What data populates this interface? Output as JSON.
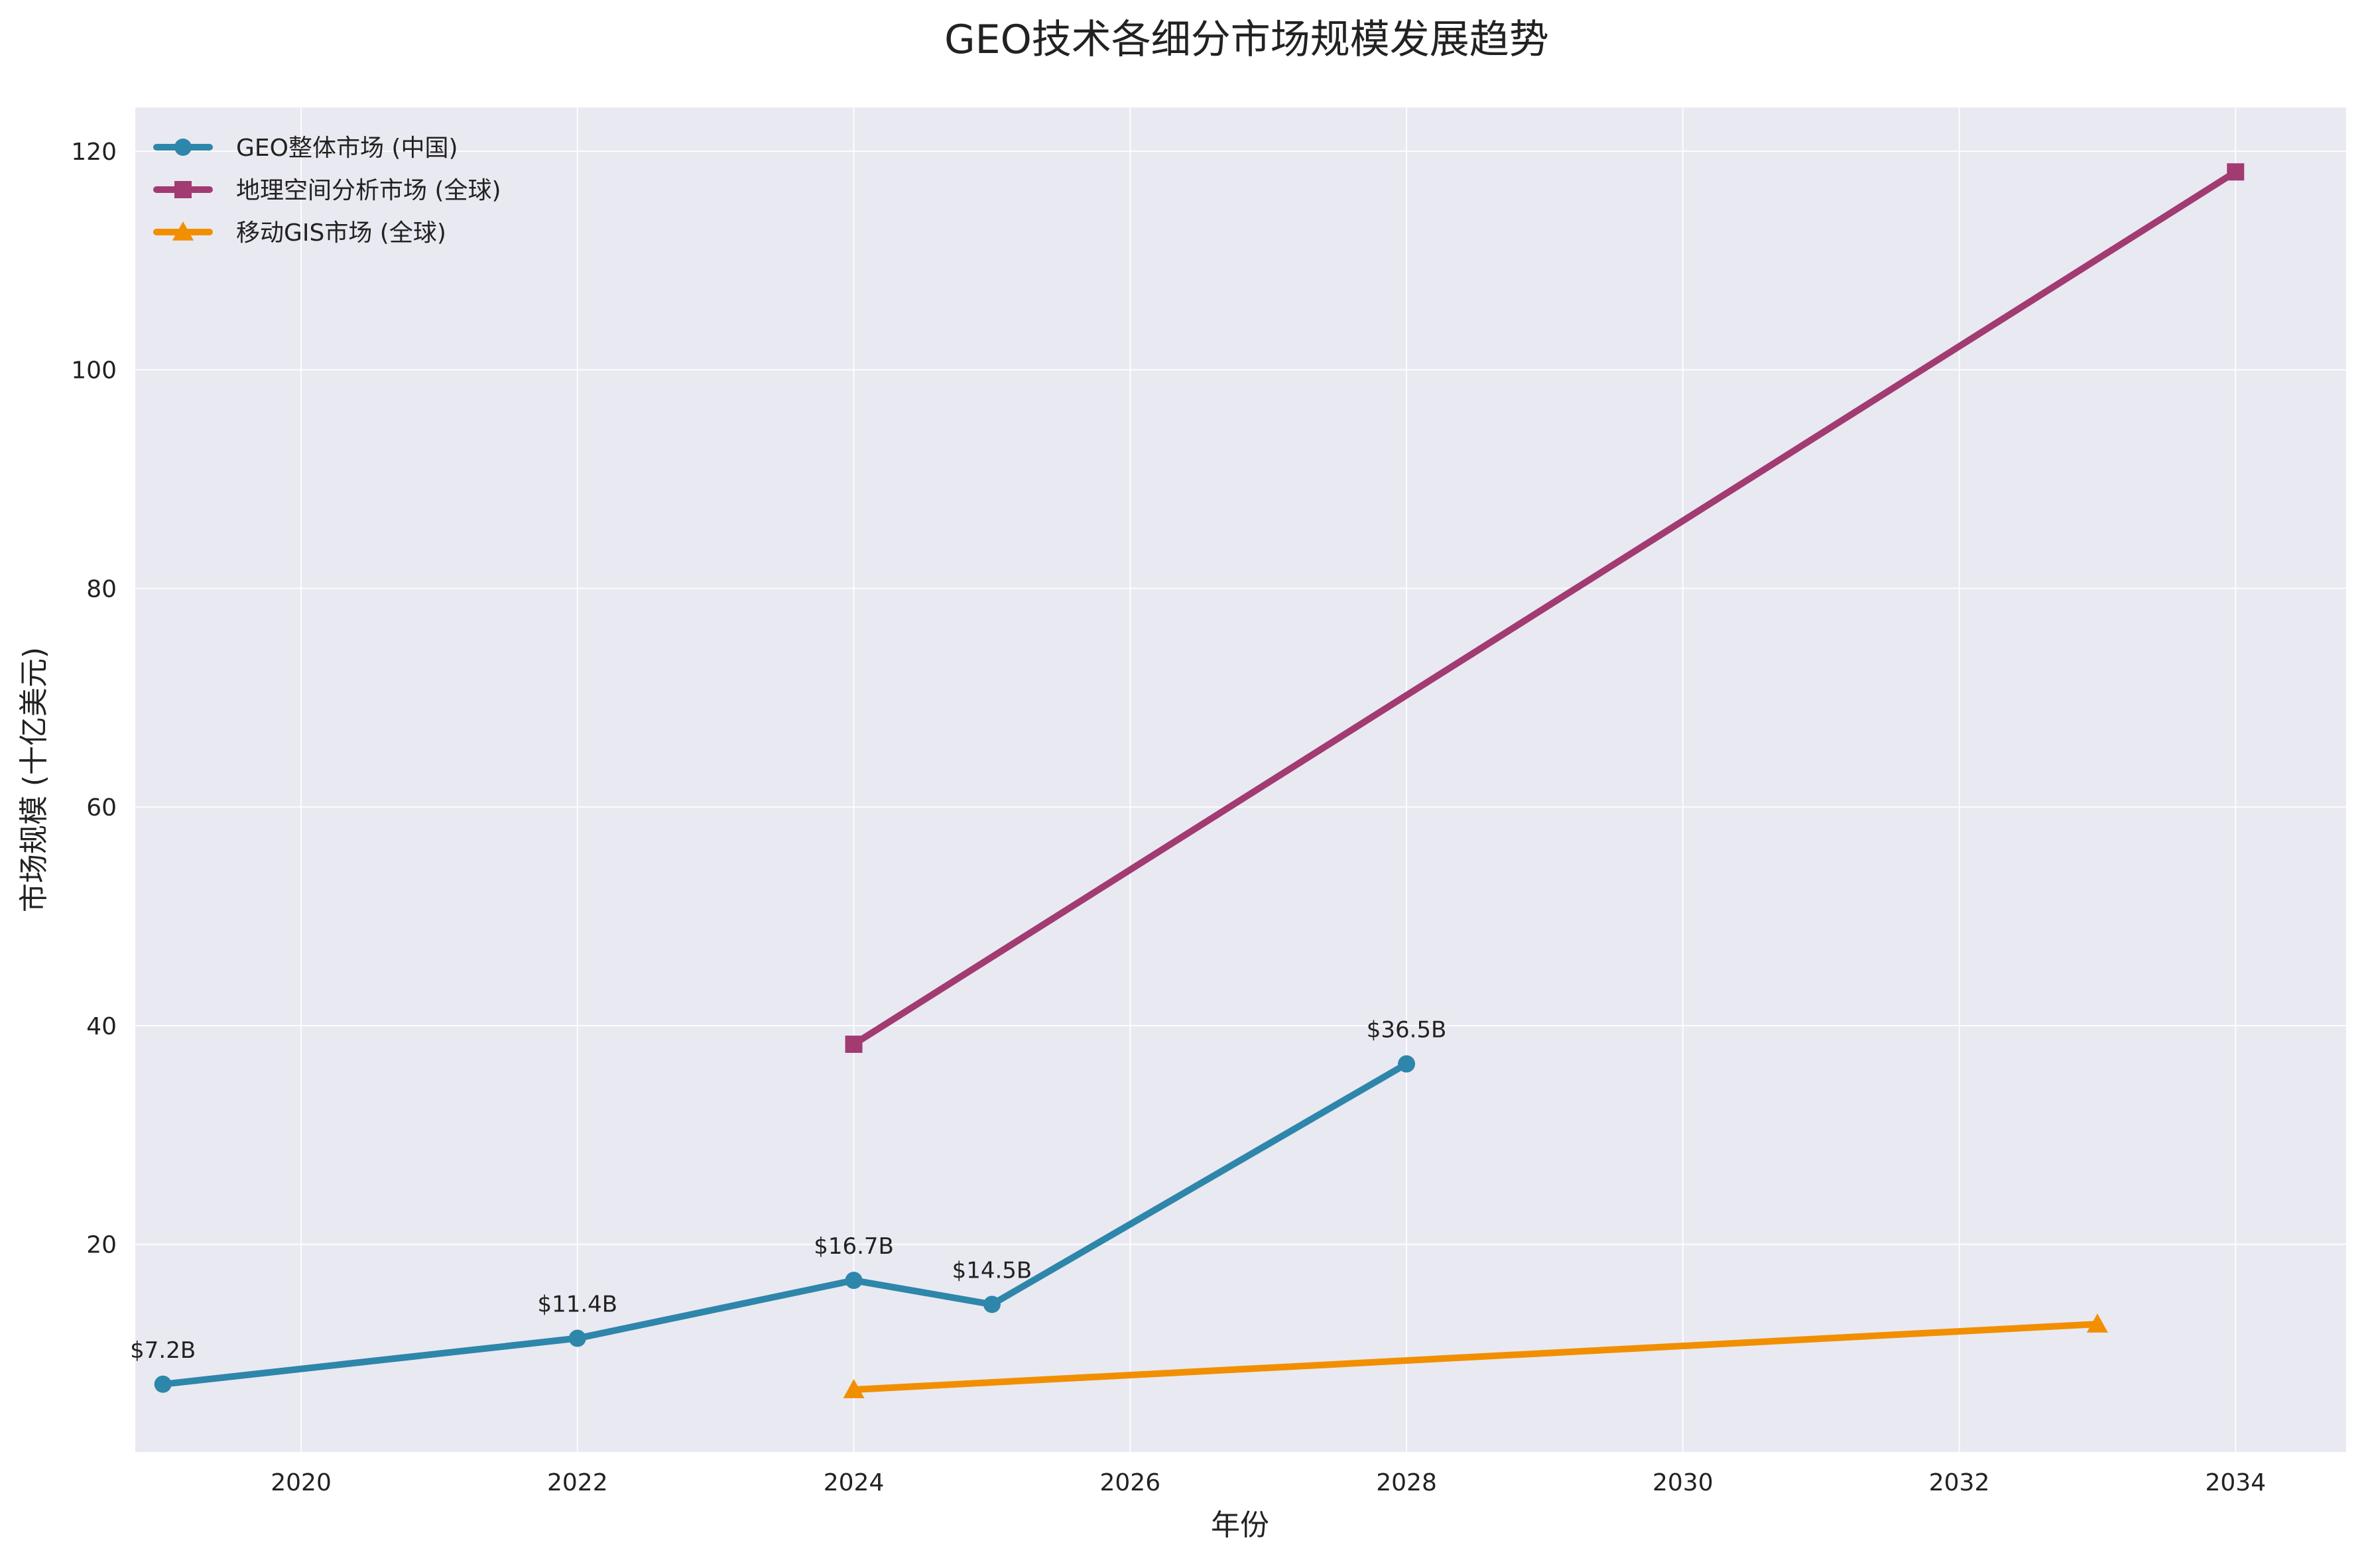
{
  "chart_data": {
    "type": "line",
    "title": "GEO技术各细分市场规模发展趋势",
    "xlabel": "年份",
    "ylabel": "市场规模 (十亿美元)",
    "xlim": [
      2018.8,
      2034.8
    ],
    "ylim": [
      1,
      124
    ],
    "x_ticks": [
      "2020",
      "2022",
      "2024",
      "2026",
      "2028",
      "2030",
      "2032",
      "2034"
    ],
    "y_ticks": [
      "20",
      "40",
      "60",
      "80",
      "100",
      "120"
    ],
    "grid": true,
    "legend_position": "top-left",
    "background_color": "#e9e9f1",
    "series": [
      {
        "name": "GEO整体市场 (中国)",
        "color": "#2e86ab",
        "marker": "circle",
        "x": [
          2019,
          2022,
          2024,
          2025,
          2028
        ],
        "y": [
          7.2,
          11.4,
          16.7,
          14.5,
          36.5
        ],
        "labels": [
          "$7.2B",
          "$11.4B",
          "$16.7B",
          "$14.5B",
          "$36.5B"
        ]
      },
      {
        "name": "地理空间分析市场 (全球)",
        "color": "#a23b72",
        "marker": "square",
        "x": [
          2024,
          2034
        ],
        "y": [
          38.3,
          118.1
        ],
        "labels": []
      },
      {
        "name": "移动GIS市场 (全球)",
        "color": "#f18f01",
        "marker": "triangle",
        "x": [
          2024,
          2033
        ],
        "y": [
          6.7,
          12.7
        ],
        "labels": []
      }
    ]
  }
}
